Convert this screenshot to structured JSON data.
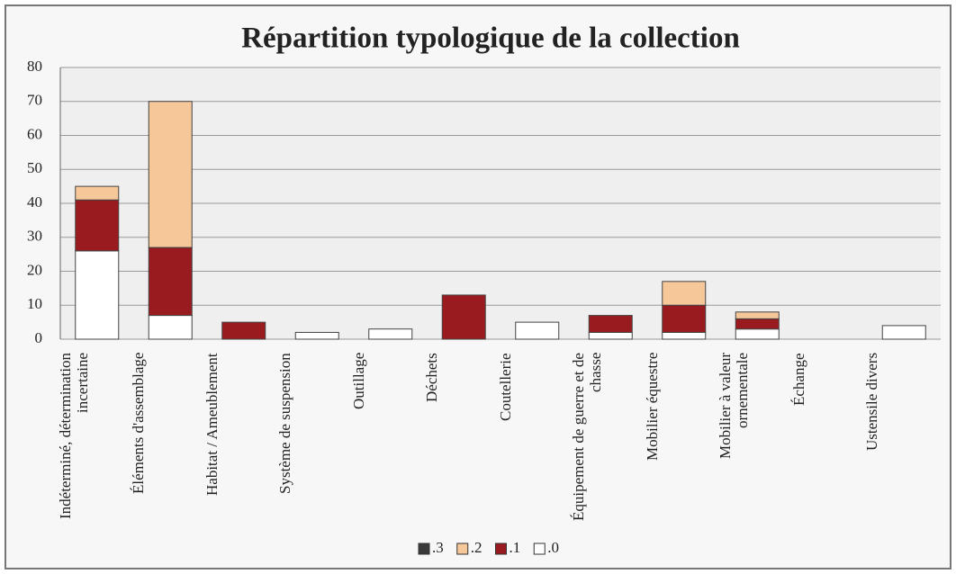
{
  "chart_data": {
    "type": "stacked_bar",
    "title": "Répartition typologique de la collection",
    "categories": [
      "Indéterminé, détermination incertaine",
      "Éléments d'assemblage",
      "Habitat / Ameublement",
      "Système de suspension",
      "Outillage",
      "Déchets",
      "Coutellerie",
      "Équipement de guerre et de chasse",
      "Mobilier équestre",
      "Mobilier à valeur ornementale",
      "Échange",
      "Ustensile divers"
    ],
    "series": [
      {
        "name": ".3",
        "color": "#3a3a3a",
        "values": [
          0,
          0,
          0,
          0,
          0,
          0,
          0,
          0,
          0,
          0,
          0,
          0
        ]
      },
      {
        "name": ".2",
        "color": "#f6c799",
        "values": [
          4,
          43,
          0,
          0,
          0,
          0,
          0,
          0,
          7,
          2,
          0,
          0
        ]
      },
      {
        "name": ".1",
        "color": "#9a1b1f",
        "values": [
          15,
          20,
          5,
          0,
          0,
          13,
          0,
          5,
          8,
          3,
          0,
          0
        ]
      },
      {
        "name": ".0",
        "color": "#ffffff",
        "values": [
          26,
          7,
          0,
          2,
          3,
          0,
          5,
          2,
          2,
          3,
          0,
          4
        ]
      }
    ],
    "ylim": [
      0,
      80
    ],
    "yticks": [
      0,
      10,
      20,
      30,
      40,
      50,
      60,
      70,
      80
    ],
    "grid": true,
    "legend": "bottom"
  }
}
